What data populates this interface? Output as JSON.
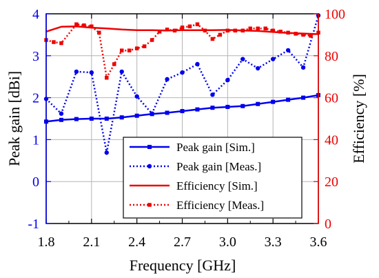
{
  "chart_data": {
    "type": "line",
    "xlabel": "Frequency [GHz]",
    "ylabel_left": "Peak gain [dBi]",
    "ylabel_right": "Efficiency [%]",
    "xlim": [
      1.8,
      3.6
    ],
    "ylim_left": [
      -1,
      4
    ],
    "ylim_right": [
      0,
      100
    ],
    "x_ticks": [
      "1.8",
      "2.1",
      "2.4",
      "2.7",
      "3.0",
      "3.3",
      "3.6"
    ],
    "y_ticks_left": [
      "-1",
      "0",
      "1",
      "2",
      "3",
      "4"
    ],
    "y_ticks_right": [
      "0",
      "20",
      "40",
      "60",
      "80",
      "100"
    ],
    "grid": true,
    "legend_position": "lower-right",
    "colors": {
      "gain": "#0000ee",
      "efficiency": "#ee0000"
    },
    "series": [
      {
        "name": "Peak gain [Sim.]",
        "axis": "left",
        "style": "solid-square",
        "x": [
          1.8,
          1.9,
          2.0,
          2.1,
          2.2,
          2.3,
          2.4,
          2.5,
          2.6,
          2.7,
          2.8,
          2.9,
          3.0,
          3.1,
          3.2,
          3.3,
          3.4,
          3.5,
          3.6
        ],
        "values": [
          1.43,
          1.47,
          1.49,
          1.5,
          1.5,
          1.53,
          1.57,
          1.61,
          1.64,
          1.68,
          1.72,
          1.76,
          1.78,
          1.8,
          1.85,
          1.9,
          1.95,
          2.0,
          2.06
        ]
      },
      {
        "name": "Peak gain [Meas.]",
        "axis": "left",
        "style": "dotted-circle",
        "x": [
          1.8,
          1.9,
          2.0,
          2.1,
          2.2,
          2.3,
          2.4,
          2.5,
          2.6,
          2.7,
          2.8,
          2.9,
          3.0,
          3.1,
          3.2,
          3.3,
          3.4,
          3.5,
          3.6
        ],
        "values": [
          1.97,
          1.62,
          2.62,
          2.6,
          0.69,
          2.62,
          2.03,
          1.62,
          2.44,
          2.6,
          2.8,
          2.07,
          2.42,
          2.92,
          2.7,
          2.92,
          3.13,
          2.72,
          3.96
        ]
      },
      {
        "name": "Efficiency [Sim.]",
        "axis": "right",
        "style": "solid",
        "x": [
          1.8,
          1.9,
          2.0,
          2.1,
          2.2,
          2.3,
          2.4,
          2.5,
          2.6,
          2.7,
          2.8,
          2.9,
          3.0,
          3.1,
          3.2,
          3.3,
          3.4,
          3.5,
          3.6
        ],
        "values": [
          91.5,
          93.8,
          94.0,
          93.4,
          93.0,
          92.5,
          92.2,
          92.2,
          92.0,
          92.2,
          92.2,
          92.2,
          92.3,
          92.0,
          91.8,
          91.3,
          90.9,
          90.6,
          90.3
        ]
      },
      {
        "name": "Efficiency [Meas.]",
        "axis": "right",
        "style": "dotted-square",
        "x": [
          1.8,
          1.85,
          1.9,
          2.0,
          2.05,
          2.1,
          2.15,
          2.2,
          2.25,
          2.3,
          2.35,
          2.4,
          2.45,
          2.5,
          2.55,
          2.6,
          2.65,
          2.7,
          2.75,
          2.8,
          2.85,
          2.9,
          2.95,
          3.0,
          3.05,
          3.1,
          3.15,
          3.2,
          3.25,
          3.3,
          3.35,
          3.4,
          3.45,
          3.5,
          3.55,
          3.6
        ],
        "values": [
          87.5,
          86.5,
          86.0,
          95.0,
          94.5,
          94.0,
          91.0,
          69.5,
          76.0,
          82.5,
          82.5,
          83.5,
          84.5,
          87.5,
          91.5,
          92.5,
          92.0,
          93.5,
          94.0,
          95.0,
          92.0,
          88.0,
          90.0,
          92.0,
          92.0,
          92.0,
          93.0,
          93.0,
          93.0,
          92.0,
          91.5,
          91.0,
          90.5,
          90.0,
          89.5,
          91.0
        ]
      }
    ]
  }
}
